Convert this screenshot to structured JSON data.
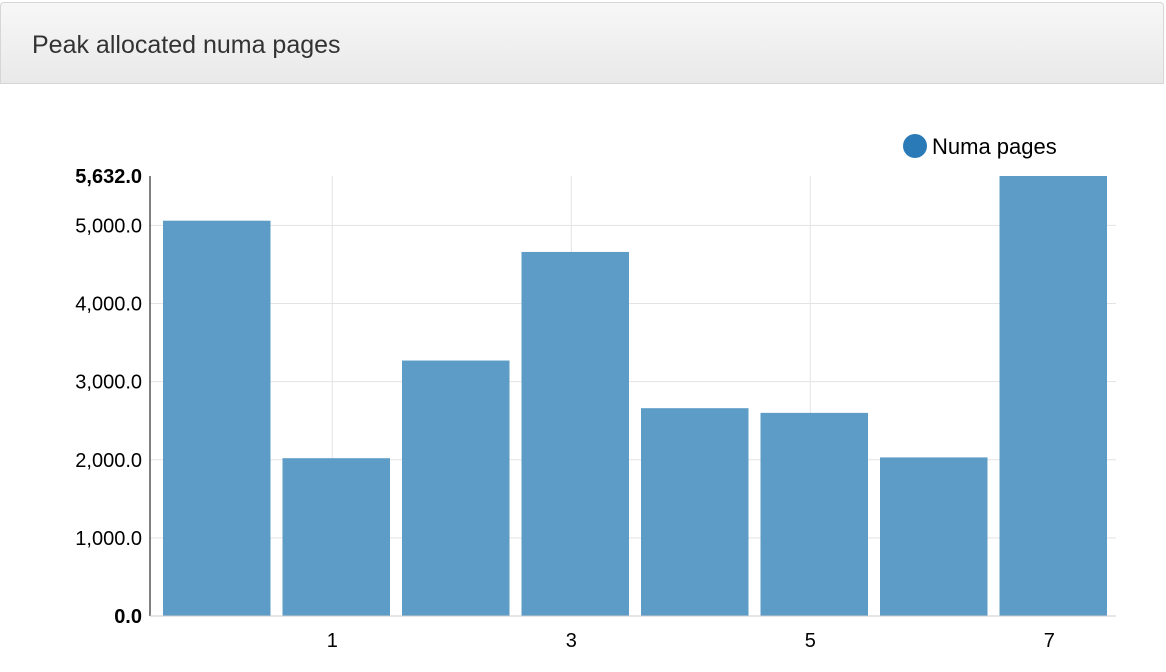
{
  "panel": {
    "title": "Peak allocated numa pages"
  },
  "colors": {
    "bar": "#5b9ac7",
    "legend_dot": "#2a7ab8",
    "grid": "#e3e3e3",
    "axis": "#000000"
  },
  "chart_data": {
    "type": "bar",
    "x": [
      0,
      1,
      2,
      3,
      4,
      5,
      6,
      7
    ],
    "x_tick_labels": [
      "1",
      "3",
      "5",
      "7"
    ],
    "x_tick_values": [
      1,
      3,
      5,
      7
    ],
    "series": [
      {
        "name": "Numa pages",
        "values": [
          5060,
          2020,
          3270,
          4660,
          2660,
          2600,
          2030,
          5632
        ]
      }
    ],
    "y_tick_values": [
      0,
      1000,
      2000,
      3000,
      4000,
      5000,
      5632
    ],
    "y_tick_labels": [
      "0.0",
      "1,000.0",
      "2,000.0",
      "3,000.0",
      "4,000.0",
      "5,000.0",
      "5,632.0"
    ],
    "ylim": [
      0,
      5632
    ],
    "grid": true,
    "legend_position": "top-right"
  }
}
